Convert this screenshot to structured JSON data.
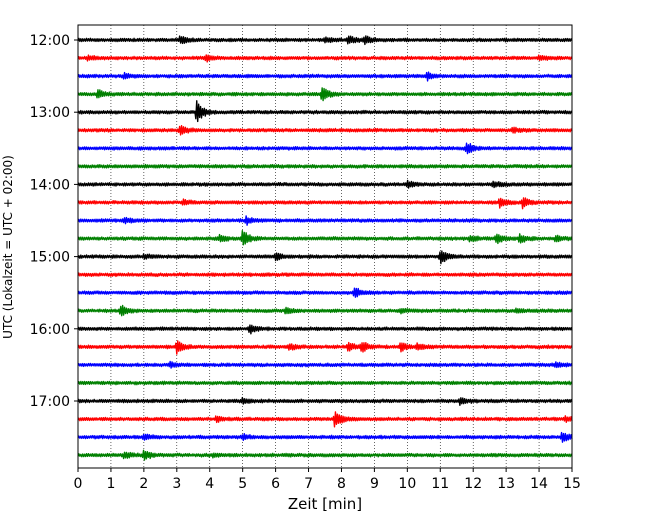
{
  "chart_data": {
    "type": "line",
    "subtype": "helicorder",
    "title": "",
    "xlabel": "Zeit  [min]",
    "ylabel": "UTC (Lokalzeit = UTC + 02:00)",
    "xlim": [
      0,
      15
    ],
    "x_ticks": [
      "0",
      "1",
      "2",
      "3",
      "4",
      "5",
      "6",
      "7",
      "8",
      "9",
      "10",
      "11",
      "12",
      "13",
      "14",
      "15"
    ],
    "y_tick_labels": [
      "12:00",
      "13:00",
      "14:00",
      "15:00",
      "16:00",
      "17:00"
    ],
    "grid": "vertical dotted at each minute",
    "color_cycle": [
      "#000000",
      "#ff0000",
      "#0000ff",
      "#008000"
    ],
    "traces": [
      {
        "start": "12:00",
        "color": "#000000",
        "events": [
          {
            "t": 3.1,
            "amp": 0.35
          },
          {
            "t": 7.5,
            "amp": 0.25
          },
          {
            "t": 8.2,
            "amp": 0.4
          },
          {
            "t": 8.7,
            "amp": 0.35
          }
        ]
      },
      {
        "start": "12:15",
        "color": "#ff0000",
        "events": [
          {
            "t": 0.3,
            "amp": 0.2
          },
          {
            "t": 3.9,
            "amp": 0.3
          },
          {
            "t": 14.0,
            "amp": 0.25
          }
        ]
      },
      {
        "start": "12:30",
        "color": "#0000ff",
        "events": [
          {
            "t": 1.4,
            "amp": 0.2
          },
          {
            "t": 10.6,
            "amp": 0.4
          }
        ]
      },
      {
        "start": "12:45",
        "color": "#008000",
        "events": [
          {
            "t": 0.6,
            "amp": 0.45
          },
          {
            "t": 7.4,
            "amp": 0.7
          }
        ]
      },
      {
        "start": "13:00",
        "color": "#000000",
        "events": [
          {
            "t": 3.6,
            "amp": 1.1
          }
        ]
      },
      {
        "start": "13:15",
        "color": "#ff0000",
        "events": [
          {
            "t": 3.1,
            "amp": 0.5
          },
          {
            "t": 13.2,
            "amp": 0.2
          }
        ]
      },
      {
        "start": "13:30",
        "color": "#0000ff",
        "events": [
          {
            "t": 11.8,
            "amp": 0.6
          }
        ]
      },
      {
        "start": "13:45",
        "color": "#008000",
        "events": []
      },
      {
        "start": "14:00",
        "color": "#000000",
        "events": [
          {
            "t": 10.0,
            "amp": 0.3
          },
          {
            "t": 12.6,
            "amp": 0.35
          }
        ]
      },
      {
        "start": "14:15",
        "color": "#ff0000",
        "events": [
          {
            "t": 3.2,
            "amp": 0.25
          },
          {
            "t": 12.8,
            "amp": 0.45
          },
          {
            "t": 13.5,
            "amp": 0.5
          }
        ]
      },
      {
        "start": "14:30",
        "color": "#0000ff",
        "events": [
          {
            "t": 1.4,
            "amp": 0.25
          },
          {
            "t": 5.1,
            "amp": 0.35
          }
        ]
      },
      {
        "start": "14:45",
        "color": "#008000",
        "events": [
          {
            "t": 4.3,
            "amp": 0.3
          },
          {
            "t": 5.0,
            "amp": 0.8
          },
          {
            "t": 11.9,
            "amp": 0.3
          },
          {
            "t": 12.7,
            "amp": 0.5
          },
          {
            "t": 13.4,
            "amp": 0.45
          },
          {
            "t": 14.5,
            "amp": 0.3
          }
        ]
      },
      {
        "start": "15:00",
        "color": "#000000",
        "events": [
          {
            "t": 2.0,
            "amp": 0.2
          },
          {
            "t": 6.0,
            "amp": 0.35
          },
          {
            "t": 11.0,
            "amp": 0.7
          }
        ]
      },
      {
        "start": "15:15",
        "color": "#ff0000",
        "events": []
      },
      {
        "start": "15:30",
        "color": "#0000ff",
        "events": [
          {
            "t": 8.4,
            "amp": 0.45
          }
        ]
      },
      {
        "start": "15:45",
        "color": "#008000",
        "events": [
          {
            "t": 1.3,
            "amp": 0.55
          },
          {
            "t": 6.3,
            "amp": 0.35
          },
          {
            "t": 9.8,
            "amp": 0.2
          },
          {
            "t": 13.3,
            "amp": 0.2
          }
        ]
      },
      {
        "start": "16:00",
        "color": "#000000",
        "events": [
          {
            "t": 5.2,
            "amp": 0.5
          }
        ]
      },
      {
        "start": "16:15",
        "color": "#ff0000",
        "events": [
          {
            "t": 3.0,
            "amp": 0.6
          },
          {
            "t": 6.4,
            "amp": 0.3
          },
          {
            "t": 8.2,
            "amp": 0.45
          },
          {
            "t": 8.6,
            "amp": 0.55
          },
          {
            "t": 9.8,
            "amp": 0.4
          },
          {
            "t": 10.3,
            "amp": 0.3
          }
        ]
      },
      {
        "start": "16:30",
        "color": "#0000ff",
        "events": [
          {
            "t": 2.8,
            "amp": 0.25
          },
          {
            "t": 14.5,
            "amp": 0.25
          }
        ]
      },
      {
        "start": "16:45",
        "color": "#008000",
        "events": []
      },
      {
        "start": "17:00",
        "color": "#000000",
        "events": [
          {
            "t": 5.0,
            "amp": 0.25
          },
          {
            "t": 11.6,
            "amp": 0.35
          }
        ]
      },
      {
        "start": "17:15",
        "color": "#ff0000",
        "events": [
          {
            "t": 4.2,
            "amp": 0.25
          },
          {
            "t": 7.8,
            "amp": 0.9
          },
          {
            "t": 14.8,
            "amp": 0.25
          }
        ]
      },
      {
        "start": "17:30",
        "color": "#0000ff",
        "events": [
          {
            "t": 2.0,
            "amp": 0.3
          },
          {
            "t": 5.0,
            "amp": 0.25
          },
          {
            "t": 14.7,
            "amp": 0.45
          }
        ]
      },
      {
        "start": "17:45",
        "color": "#008000",
        "events": [
          {
            "t": 1.4,
            "amp": 0.35
          },
          {
            "t": 2.0,
            "amp": 0.5
          },
          {
            "t": 4.1,
            "amp": 0.2
          }
        ]
      }
    ]
  }
}
